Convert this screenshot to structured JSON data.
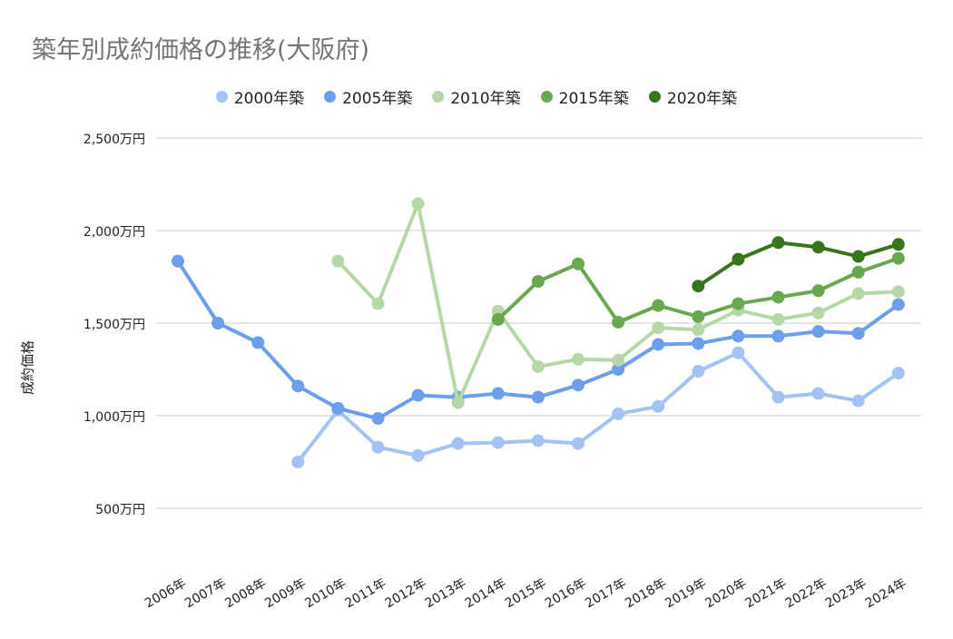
{
  "chart_data": {
    "type": "line",
    "title": "築年別成約価格の推移(大阪府)",
    "ylabel": "成約価格",
    "xlabel": "",
    "categories": [
      "2006年",
      "2007年",
      "2008年",
      "2009年",
      "2010年",
      "2011年",
      "2012年",
      "2013年",
      "2014年",
      "2015年",
      "2016年",
      "2017年",
      "2018年",
      "2019年",
      "2020年",
      "2021年",
      "2022年",
      "2023年",
      "2024年"
    ],
    "ylim": [
      0,
      2500
    ],
    "yticks": [
      500,
      1000,
      1500,
      2000,
      2500
    ],
    "ytick_labels": [
      "500万円",
      "1,000万円",
      "1,500万円",
      "2,000万円",
      "2,500万円"
    ],
    "grid": true,
    "legend_position": "top",
    "series": [
      {
        "name": "2000年築",
        "color": "#a4c2f4",
        "values": [
          null,
          null,
          null,
          750,
          1030,
          830,
          785,
          850,
          855,
          865,
          850,
          1010,
          1050,
          1240,
          1340,
          1100,
          1120,
          1080,
          1230
        ]
      },
      {
        "name": "2005年築",
        "color": "#6d9eeb",
        "values": [
          1835,
          1500,
          1395,
          1160,
          1040,
          985,
          1110,
          1100,
          1120,
          1100,
          1165,
          1250,
          1385,
          1390,
          1430,
          1430,
          1455,
          1445,
          1600
        ]
      },
      {
        "name": "2010年築",
        "color": "#b6d7a8",
        "values": [
          null,
          null,
          null,
          null,
          1835,
          1605,
          2145,
          1070,
          1565,
          1265,
          1305,
          1300,
          1475,
          1465,
          1570,
          1520,
          1555,
          1660,
          1670
        ]
      },
      {
        "name": "2015年築",
        "color": "#6aa84f",
        "values": [
          null,
          null,
          null,
          null,
          null,
          null,
          null,
          null,
          1520,
          1725,
          1820,
          1505,
          1595,
          1535,
          1605,
          1640,
          1675,
          1775,
          1850
        ]
      },
      {
        "name": "2020年築",
        "color": "#38761d",
        "values": [
          null,
          null,
          null,
          null,
          null,
          null,
          null,
          null,
          null,
          null,
          null,
          null,
          null,
          1700,
          1845,
          1935,
          1910,
          1860,
          1925
        ]
      }
    ]
  }
}
